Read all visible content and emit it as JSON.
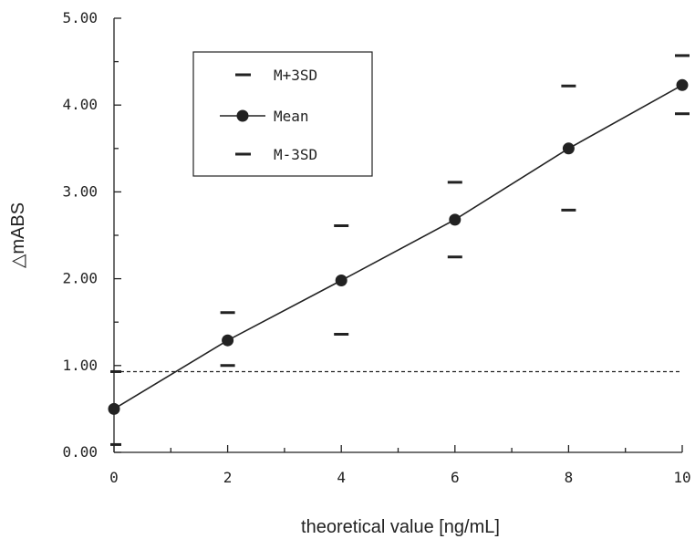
{
  "chart_data": {
    "type": "line",
    "xlabel": "theoretical value [ng/mL]",
    "ylabel": "△mABS",
    "xlim": [
      0,
      10
    ],
    "ylim": [
      0,
      5
    ],
    "x_ticks": [
      "0",
      "2",
      "4",
      "6",
      "8",
      "10"
    ],
    "y_ticks": [
      "0.00",
      "1.00",
      "2.00",
      "3.00",
      "4.00",
      "5.00"
    ],
    "grid": false,
    "legend_position": "top-left",
    "x": [
      0,
      2,
      4,
      6,
      8,
      10
    ],
    "series": [
      {
        "name": "M+3SD",
        "style": "dash-marker",
        "values": [
          0.93,
          1.61,
          2.61,
          3.11,
          4.22,
          4.57
        ]
      },
      {
        "name": "Mean",
        "style": "line-dot",
        "values": [
          0.5,
          1.29,
          1.98,
          2.68,
          3.5,
          4.23
        ]
      },
      {
        "name": "M-3SD",
        "style": "dash-marker",
        "values": [
          0.09,
          1.0,
          1.36,
          2.25,
          2.79,
          3.9
        ]
      }
    ],
    "cutoff": {
      "style": "dashed",
      "value": 0.93
    }
  }
}
